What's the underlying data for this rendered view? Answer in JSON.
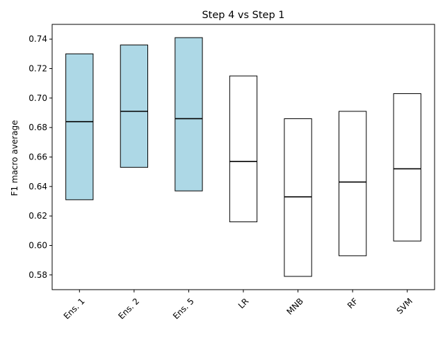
{
  "chart_data": {
    "type": "box",
    "title": "Step 4 vs Step 1",
    "xlabel": "",
    "ylabel": "F1 macro average",
    "ylim": [
      0.57,
      0.75
    ],
    "yticks": [
      0.58,
      0.6,
      0.62,
      0.64,
      0.66,
      0.68,
      0.7,
      0.72,
      0.74
    ],
    "ytick_labels": [
      "0.58",
      "0.60",
      "0.62",
      "0.64",
      "0.66",
      "0.68",
      "0.70",
      "0.72",
      "0.74"
    ],
    "categories": [
      "Ens. 1",
      "Ens. 2",
      "Ens. 5",
      "LR",
      "MNB",
      "RF",
      "SVM"
    ],
    "boxes": [
      {
        "label": "Ens. 1",
        "q1": 0.631,
        "median": 0.684,
        "q3": 0.73,
        "fill": "#add8e6"
      },
      {
        "label": "Ens. 2",
        "q1": 0.653,
        "median": 0.691,
        "q3": 0.736,
        "fill": "#add8e6"
      },
      {
        "label": "Ens. 5",
        "q1": 0.637,
        "median": 0.686,
        "q3": 0.741,
        "fill": "#add8e6"
      },
      {
        "label": "LR",
        "q1": 0.616,
        "median": 0.657,
        "q3": 0.715,
        "fill": "#ffffff"
      },
      {
        "label": "MNB",
        "q1": 0.579,
        "median": 0.633,
        "q3": 0.686,
        "fill": "#ffffff"
      },
      {
        "label": "RF",
        "q1": 0.593,
        "median": 0.643,
        "q3": 0.691,
        "fill": "#ffffff"
      },
      {
        "label": "SVM",
        "q1": 0.603,
        "median": 0.652,
        "q3": 0.703,
        "fill": "#ffffff"
      }
    ],
    "grid": false,
    "colors": {
      "highlight_fill": "#add8e6",
      "plain_fill": "#ffffff",
      "edge": "#000000"
    }
  }
}
